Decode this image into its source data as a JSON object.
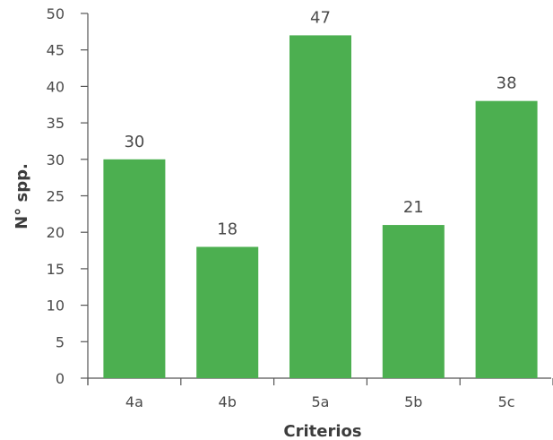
{
  "chart_data": {
    "type": "bar",
    "categories": [
      "4a",
      "4b",
      "5a",
      "5b",
      "5c"
    ],
    "values": [
      30,
      18,
      47,
      21,
      38
    ],
    "data_labels": [
      "30",
      "18",
      "47",
      "21",
      "38"
    ],
    "title": "",
    "xlabel": "Criterios",
    "ylabel": "N° spp.",
    "ylim": [
      0,
      50
    ],
    "yticks": [
      0,
      5,
      10,
      15,
      20,
      25,
      30,
      35,
      40,
      45,
      50
    ],
    "bar_color": "#4caf50",
    "grid": false,
    "legend": "none"
  }
}
